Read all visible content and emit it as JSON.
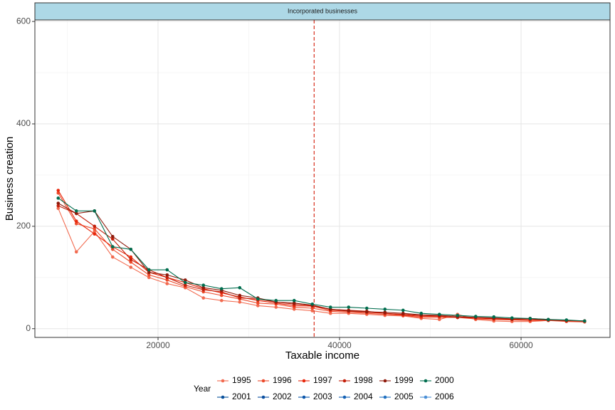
{
  "chart_data": {
    "type": "line",
    "facet_title": "Incorporated businesses",
    "xlabel": "Taxable income",
    "ylabel": "Business creation",
    "legend_title": "Year",
    "x": [
      9000,
      11000,
      13000,
      15000,
      17000,
      19000,
      21000,
      23000,
      25000,
      27000,
      29000,
      31000,
      33000,
      35000,
      37000,
      39000,
      41000,
      43000,
      45000,
      47000,
      49000,
      51000,
      53000,
      55000,
      57000,
      59000,
      61000,
      63000,
      65000,
      67000
    ],
    "series": [
      {
        "name": "1995",
        "color": "#f26a4f",
        "values": [
          235,
          150,
          190,
          140,
          120,
          100,
          88,
          80,
          60,
          55,
          52,
          45,
          42,
          38,
          35,
          30,
          30,
          28,
          26,
          25,
          20,
          18,
          28,
          18,
          15,
          14,
          14,
          16,
          14,
          13
        ]
      },
      {
        "name": "1996",
        "color": "#ec4b2c",
        "values": [
          265,
          205,
          195,
          155,
          130,
          105,
          95,
          82,
          72,
          65,
          58,
          50,
          48,
          42,
          40,
          34,
          32,
          30,
          28,
          26,
          22,
          22,
          22,
          19,
          18,
          17,
          16,
          16,
          15,
          14
        ]
      },
      {
        "name": "1997",
        "color": "#e8280c",
        "values": [
          270,
          210,
          185,
          160,
          140,
          110,
          100,
          90,
          78,
          70,
          62,
          55,
          50,
          45,
          44,
          36,
          34,
          32,
          30,
          27,
          24,
          24,
          22,
          21,
          19,
          18,
          17,
          17,
          15,
          15
        ]
      },
      {
        "name": "1998",
        "color": "#c41f0a",
        "values": [
          240,
          225,
          200,
          175,
          135,
          115,
          100,
          85,
          76,
          72,
          60,
          58,
          52,
          48,
          45,
          38,
          36,
          34,
          30,
          28,
          26,
          25,
          22,
          22,
          20,
          19,
          20,
          18,
          16,
          15
        ]
      },
      {
        "name": "1999",
        "color": "#8e1a0b",
        "values": [
          245,
          225,
          230,
          180,
          155,
          110,
          105,
          95,
          80,
          75,
          65,
          60,
          52,
          50,
          46,
          38,
          35,
          33,
          32,
          30,
          27,
          26,
          24,
          22,
          21,
          19,
          19,
          17,
          16,
          15
        ]
      },
      {
        "name": "2000",
        "color": "#006d4e",
        "values": [
          255,
          230,
          230,
          160,
          155,
          115,
          115,
          90,
          85,
          78,
          80,
          58,
          55,
          55,
          48,
          42,
          42,
          40,
          38,
          36,
          30,
          28,
          26,
          24,
          23,
          21,
          20,
          18,
          17,
          15
        ]
      },
      {
        "name": "2001",
        "color": "#08519c",
        "values": [
          null,
          null,
          null,
          null,
          null,
          null,
          null,
          null,
          null,
          null,
          null,
          null,
          null,
          null,
          null,
          null,
          null,
          null,
          null,
          null,
          null,
          null,
          null,
          null,
          null,
          null,
          null,
          null,
          null,
          null
        ]
      },
      {
        "name": "2002",
        "color": "#0a4fa0",
        "values": [
          null,
          null,
          null,
          null,
          null,
          null,
          null,
          null,
          null,
          null,
          null,
          null,
          null,
          null,
          null,
          null,
          null,
          null,
          null,
          null,
          null,
          null,
          null,
          null,
          null,
          null,
          null,
          null,
          null,
          null
        ]
      },
      {
        "name": "2003",
        "color": "#0b56aa",
        "values": [
          null,
          null,
          null,
          null,
          null,
          null,
          null,
          null,
          null,
          null,
          null,
          null,
          null,
          null,
          null,
          null,
          null,
          null,
          null,
          null,
          null,
          null,
          null,
          null,
          null,
          null,
          null,
          null,
          null,
          null
        ]
      },
      {
        "name": "2004",
        "color": "#1361b4",
        "values": [
          null,
          null,
          null,
          null,
          null,
          null,
          null,
          null,
          null,
          null,
          null,
          null,
          null,
          null,
          null,
          null,
          null,
          null,
          null,
          null,
          null,
          null,
          null,
          null,
          null,
          null,
          null,
          null,
          null,
          null
        ]
      },
      {
        "name": "2005",
        "color": "#2171c0",
        "values": [
          null,
          null,
          null,
          null,
          null,
          null,
          null,
          null,
          null,
          null,
          null,
          null,
          null,
          null,
          null,
          null,
          null,
          null,
          null,
          null,
          null,
          null,
          null,
          null,
          null,
          null,
          null,
          null,
          null,
          null
        ]
      },
      {
        "name": "2006",
        "color": "#4a8fd6",
        "values": [
          null,
          null,
          null,
          null,
          null,
          null,
          null,
          null,
          null,
          null,
          null,
          null,
          null,
          null,
          null,
          null,
          null,
          null,
          null,
          null,
          null,
          null,
          null,
          null,
          null,
          null,
          null,
          null,
          null,
          null
        ]
      }
    ],
    "xlim": [
      6430,
      69800
    ],
    "ylim": [
      -17,
      603
    ],
    "xticks": [
      20000,
      40000,
      60000
    ],
    "yticks": [
      0,
      200,
      400,
      600
    ],
    "x_minor_ticks": [
      10000,
      30000,
      50000
    ],
    "y_minor_ticks": [
      100,
      300,
      500
    ],
    "grid": true,
    "reference_line": {
      "x": 37200,
      "color": "#d7301f"
    },
    "legend_position": "bottom"
  }
}
